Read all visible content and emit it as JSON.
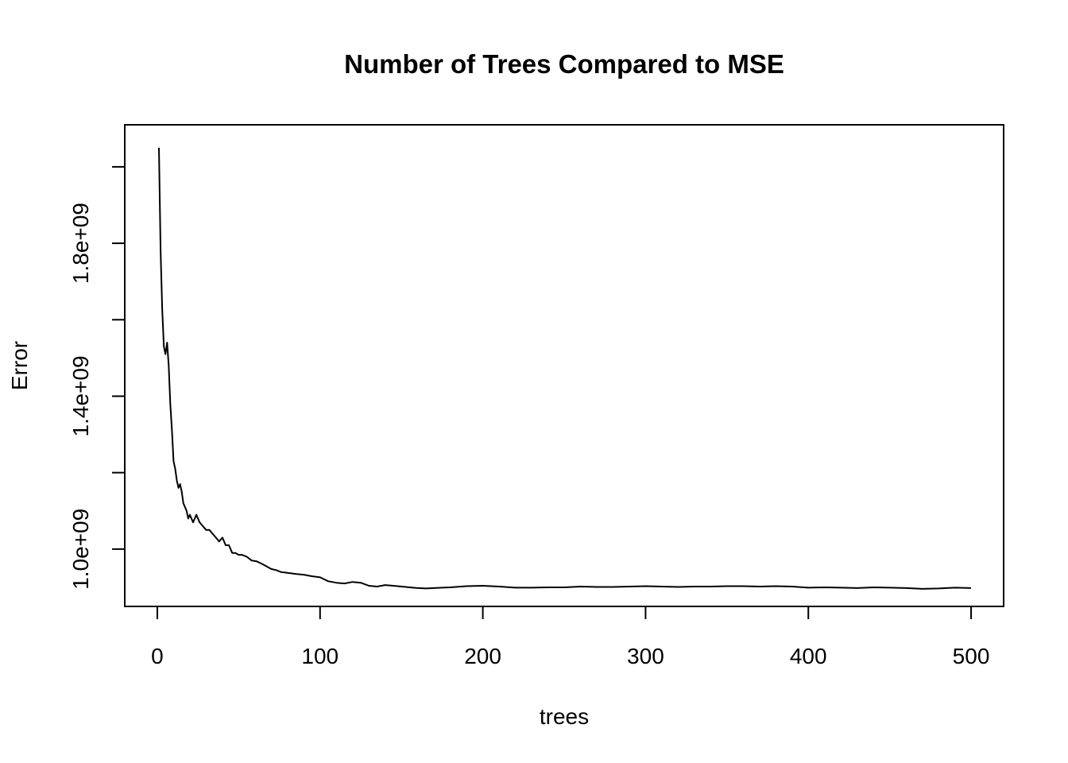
{
  "chart_data": {
    "type": "line",
    "title": "Number of Trees Compared to MSE",
    "xlabel": "trees",
    "ylabel": "Error",
    "xlim": [
      -20,
      520
    ],
    "ylim": [
      850000000,
      2110000000
    ],
    "x_ticks": [
      0,
      100,
      200,
      300,
      400,
      500
    ],
    "x_tick_labels": [
      "0",
      "100",
      "200",
      "300",
      "400",
      "500"
    ],
    "y_ticks": [
      1000000000,
      1200000000,
      1400000000,
      1600000000,
      1800000000,
      2000000000
    ],
    "y_tick_labels": [
      "1.0e+09",
      "",
      "1.4e+09",
      "",
      "1.8e+09",
      ""
    ],
    "grid": false,
    "legend": "none",
    "line_color": "#000000",
    "series": [
      {
        "x": [
          1,
          2,
          3,
          4,
          5,
          6,
          7,
          8,
          9,
          10,
          11,
          12,
          13,
          14,
          15,
          16,
          17,
          18,
          19,
          20,
          22,
          24,
          26,
          28,
          30,
          32,
          34,
          36,
          38,
          40,
          42,
          44,
          46,
          48,
          50,
          52,
          55,
          58,
          61,
          64,
          67,
          70,
          73,
          76,
          80,
          85,
          90,
          95,
          100,
          105,
          110,
          115,
          120,
          125,
          130,
          135,
          140,
          145,
          150,
          155,
          160,
          165,
          170,
          175,
          180,
          190,
          200,
          210,
          220,
          230,
          240,
          250,
          260,
          270,
          280,
          290,
          300,
          310,
          320,
          330,
          340,
          350,
          360,
          370,
          380,
          390,
          400,
          410,
          420,
          430,
          440,
          450,
          460,
          470,
          480,
          490,
          500
        ],
        "values": [
          2050000000,
          1780000000,
          1630000000,
          1530000000,
          1510000000,
          1540000000,
          1480000000,
          1380000000,
          1310000000,
          1230000000,
          1210000000,
          1180000000,
          1160000000,
          1170000000,
          1150000000,
          1120000000,
          1110000000,
          1100000000,
          1080000000,
          1090000000,
          1070000000,
          1090000000,
          1070000000,
          1060000000,
          1050000000,
          1050000000,
          1040000000,
          1030000000,
          1020000000,
          1030000000,
          1010000000,
          1010000000,
          990000000,
          990000000,
          985000000,
          985000000,
          980000000,
          970000000,
          968000000,
          962000000,
          955000000,
          948000000,
          945000000,
          940000000,
          938000000,
          935000000,
          933000000,
          929000000,
          926000000,
          916000000,
          912000000,
          910000000,
          914000000,
          912000000,
          904000000,
          902000000,
          906000000,
          904000000,
          902000000,
          900000000,
          898000000,
          897000000,
          898000000,
          899000000,
          900000000,
          903000000,
          904000000,
          902000000,
          899000000,
          899000000,
          900000000,
          900000000,
          902000000,
          901000000,
          901000000,
          902000000,
          903000000,
          902000000,
          901000000,
          902000000,
          902000000,
          903000000,
          903000000,
          902000000,
          903000000,
          902000000,
          899000000,
          900000000,
          899000000,
          898000000,
          900000000,
          899000000,
          898000000,
          896000000,
          897000000,
          899000000,
          898000000
        ]
      }
    ]
  }
}
